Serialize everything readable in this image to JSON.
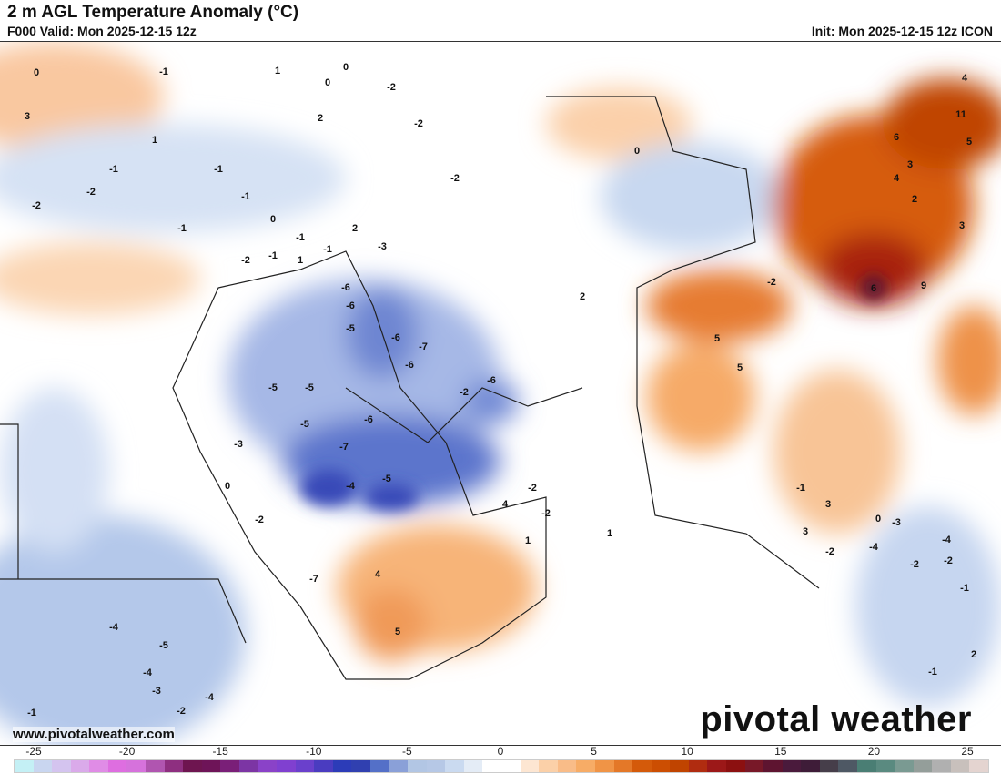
{
  "header": {
    "title": "2 m AGL Temperature Anomaly (°C)",
    "valid": "F000 Valid: Mon 2025-12-15 12z",
    "init": "Init: Mon 2025-12-15 12z ICON"
  },
  "footer": {
    "website": "www.pivotalweather.com",
    "logo": "pivotal weather"
  },
  "colorbar": {
    "ticks": [
      "-25",
      "-20",
      "-15",
      "-10",
      "-5",
      "0",
      "5",
      "10",
      "15",
      "20",
      "25"
    ],
    "colors": [
      "#c4f0f5",
      "#c9d6f0",
      "#d4c4ef",
      "#daaaea",
      "#e08ce6",
      "#de6ee0",
      "#d672dc",
      "#b055b0",
      "#8e2f80",
      "#6e1550",
      "#6e1458",
      "#7a1f78",
      "#7c35a4",
      "#8a42c8",
      "#8040d0",
      "#6a40cc",
      "#4a3cc0",
      "#2c3cb8",
      "#3040b0",
      "#5470c8",
      "#8aa0d8",
      "#b2c6e4",
      "#b6c8e6",
      "#cadaf0",
      "#e4ecf6",
      "#ffffff",
      "#ffffff",
      "#fde6d2",
      "#fbd0a8",
      "#f9bc88",
      "#f7ac66",
      "#f09446",
      "#e47828",
      "#d45a0a",
      "#cc4e02",
      "#c04400",
      "#b02c10",
      "#9c1818",
      "#8c1010",
      "#781828",
      "#5e1430",
      "#4a1a3c",
      "#3e1c38",
      "#463e4a",
      "#4e5864",
      "#4a7e74",
      "#5a8a80",
      "#7a9a92",
      "#949e9a",
      "#b0b0b0",
      "#c8c0bc",
      "#e4d4d0"
    ]
  },
  "map_labels": [
    "-1",
    "0",
    "1",
    "0",
    "2",
    "-2",
    "-2",
    "0",
    "3",
    "1",
    "-1",
    "-2",
    "-1",
    "-1",
    "-2",
    "-1",
    "0",
    "-2",
    "1",
    "-2",
    "-1",
    "2",
    "-1",
    "-1",
    "-3",
    "-6",
    "-6",
    "-5",
    "-6",
    "-7",
    "-6",
    "-2",
    "-6",
    "-5",
    "-6",
    "-7",
    "-5",
    "-3",
    "-4",
    "-5",
    "-5",
    "-7",
    "-2",
    "0",
    "4",
    "4",
    "5",
    "-2",
    "-2",
    "1",
    "2",
    "0",
    "3",
    "4",
    "11",
    "6",
    "4",
    "5",
    "2",
    "3",
    "-2",
    "6",
    "9",
    "5",
    "5",
    "3",
    "1",
    "-2",
    "-1",
    "-4",
    "-3",
    "-2",
    "-1",
    "0",
    "-4",
    "-4",
    "-5",
    "-4",
    "-3",
    "-2",
    "-4",
    "-1",
    "-1",
    "2",
    "3",
    "-2"
  ]
}
